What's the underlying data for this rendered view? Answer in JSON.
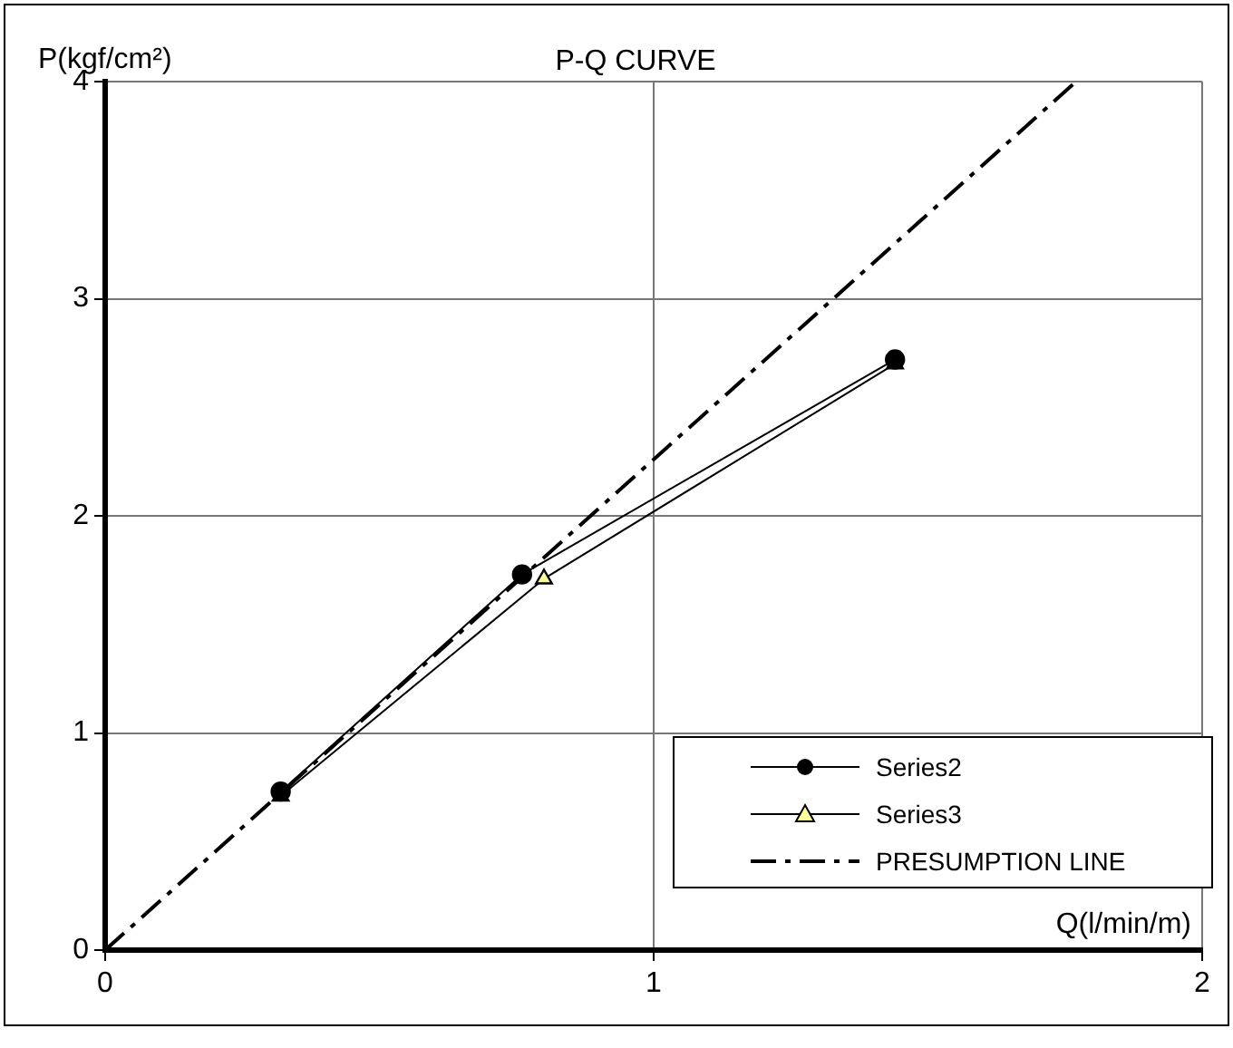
{
  "chart_data": {
    "type": "line",
    "title": "P-Q CURVE",
    "xlabel": "Q(l/min/m)",
    "ylabel": "P(kgf/cm²)",
    "xlim": [
      0,
      2
    ],
    "xticks": [
      0,
      1,
      2
    ],
    "ylim": [
      0,
      4
    ],
    "yticks": [
      0,
      1,
      2,
      3,
      4
    ],
    "grid": true,
    "legend": "bottom right",
    "series": [
      {
        "name": "Series2",
        "color": "#000000",
        "marker": "circle",
        "x": [
          0.32,
          0.76,
          1.44
        ],
        "values": [
          0.73,
          1.73,
          2.72
        ]
      },
      {
        "name": "Series3",
        "color": "#ffff99",
        "marker": "triangle",
        "x": [
          0.32,
          0.8,
          1.44
        ],
        "values": [
          0.71,
          1.71,
          2.7
        ]
      },
      {
        "name": "PRESUMPTION LINE",
        "color": "#000000",
        "marker": "none",
        "line_style": "dashed",
        "x": [
          0,
          1.77
        ],
        "values": [
          0,
          4
        ]
      }
    ]
  }
}
